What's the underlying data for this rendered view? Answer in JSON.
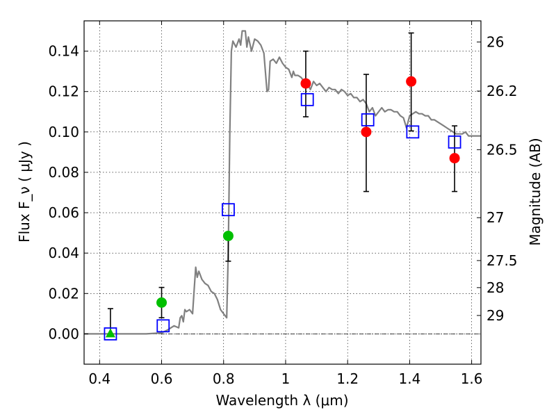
{
  "chart_data": {
    "type": "scatter",
    "xlabel": "Wavelength  λ (μm)",
    "ylabel": "Flux  F_ν  ( μJy )",
    "ylabel_right": "Magnitude (AB)",
    "xlim": [
      0.35,
      1.63
    ],
    "ylim": [
      -0.015,
      0.155
    ],
    "grid": true,
    "x_ticks": [
      {
        "v": 0.4,
        "label": "0.4"
      },
      {
        "v": 0.6,
        "label": "0.6"
      },
      {
        "v": 0.8,
        "label": "0.8"
      },
      {
        "v": 1.0,
        "label": "1"
      },
      {
        "v": 1.2,
        "label": "1.2"
      },
      {
        "v": 1.4,
        "label": "1.4"
      },
      {
        "v": 1.6,
        "label": "1.6"
      }
    ],
    "y_ticks": [
      {
        "v": 0.0,
        "label": "0.00"
      },
      {
        "v": 0.02,
        "label": "0.02"
      },
      {
        "v": 0.04,
        "label": "0.04"
      },
      {
        "v": 0.06,
        "label": "0.06"
      },
      {
        "v": 0.08,
        "label": "0.08"
      },
      {
        "v": 0.1,
        "label": "0.10"
      },
      {
        "v": 0.12,
        "label": "0.12"
      },
      {
        "v": 0.14,
        "label": "0.14"
      }
    ],
    "right_ticks": [
      {
        "mag": 26.0,
        "label": "26"
      },
      {
        "mag": 26.2,
        "label": "26.2"
      },
      {
        "mag": 26.5,
        "label": "26.5"
      },
      {
        "mag": 27.0,
        "label": "27"
      },
      {
        "mag": 27.5,
        "label": "27.5"
      },
      {
        "mag": 28.0,
        "label": "28"
      },
      {
        "mag": 29.0,
        "label": "29"
      }
    ],
    "series": [
      {
        "type": "line",
        "color": "#808080",
        "points": [
          [
            0.35,
            0.0
          ],
          [
            0.55,
            0.0
          ],
          [
            0.6,
            0.0005
          ],
          [
            0.62,
            0.002
          ],
          [
            0.64,
            0.004
          ],
          [
            0.655,
            0.003
          ],
          [
            0.66,
            0.008
          ],
          [
            0.665,
            0.009
          ],
          [
            0.67,
            0.006
          ],
          [
            0.675,
            0.012
          ],
          [
            0.68,
            0.011
          ],
          [
            0.69,
            0.012
          ],
          [
            0.7,
            0.01
          ],
          [
            0.705,
            0.022
          ],
          [
            0.71,
            0.033
          ],
          [
            0.715,
            0.028
          ],
          [
            0.72,
            0.031
          ],
          [
            0.73,
            0.027
          ],
          [
            0.74,
            0.025
          ],
          [
            0.75,
            0.024
          ],
          [
            0.76,
            0.021
          ],
          [
            0.77,
            0.02
          ],
          [
            0.78,
            0.017
          ],
          [
            0.79,
            0.012
          ],
          [
            0.8,
            0.01
          ],
          [
            0.81,
            0.008
          ],
          [
            0.815,
            0.04
          ],
          [
            0.82,
            0.1
          ],
          [
            0.825,
            0.14
          ],
          [
            0.83,
            0.145
          ],
          [
            0.84,
            0.142
          ],
          [
            0.85,
            0.146
          ],
          [
            0.855,
            0.143
          ],
          [
            0.86,
            0.15
          ],
          [
            0.87,
            0.15
          ],
          [
            0.875,
            0.142
          ],
          [
            0.88,
            0.147
          ],
          [
            0.89,
            0.14
          ],
          [
            0.9,
            0.146
          ],
          [
            0.91,
            0.145
          ],
          [
            0.92,
            0.143
          ],
          [
            0.93,
            0.139
          ],
          [
            0.94,
            0.12
          ],
          [
            0.945,
            0.121
          ],
          [
            0.95,
            0.135
          ],
          [
            0.96,
            0.136
          ],
          [
            0.97,
            0.134
          ],
          [
            0.98,
            0.137
          ],
          [
            0.99,
            0.134
          ],
          [
            1.0,
            0.132
          ],
          [
            1.01,
            0.131
          ],
          [
            1.02,
            0.127
          ],
          [
            1.025,
            0.13
          ],
          [
            1.03,
            0.128
          ],
          [
            1.04,
            0.128
          ],
          [
            1.05,
            0.127
          ],
          [
            1.06,
            0.125
          ],
          [
            1.07,
            0.124
          ],
          [
            1.08,
            0.121
          ],
          [
            1.09,
            0.125
          ],
          [
            1.1,
            0.123
          ],
          [
            1.11,
            0.124
          ],
          [
            1.12,
            0.122
          ],
          [
            1.13,
            0.12
          ],
          [
            1.14,
            0.122
          ],
          [
            1.15,
            0.121
          ],
          [
            1.16,
            0.121
          ],
          [
            1.17,
            0.119
          ],
          [
            1.18,
            0.121
          ],
          [
            1.19,
            0.12
          ],
          [
            1.2,
            0.118
          ],
          [
            1.21,
            0.119
          ],
          [
            1.22,
            0.117
          ],
          [
            1.23,
            0.117
          ],
          [
            1.24,
            0.115
          ],
          [
            1.25,
            0.116
          ],
          [
            1.26,
            0.114
          ],
          [
            1.27,
            0.11
          ],
          [
            1.28,
            0.112
          ],
          [
            1.29,
            0.108
          ],
          [
            1.3,
            0.11
          ],
          [
            1.31,
            0.112
          ],
          [
            1.32,
            0.11
          ],
          [
            1.33,
            0.111
          ],
          [
            1.34,
            0.111
          ],
          [
            1.35,
            0.11
          ],
          [
            1.36,
            0.11
          ],
          [
            1.37,
            0.108
          ],
          [
            1.38,
            0.107
          ],
          [
            1.39,
            0.102
          ],
          [
            1.4,
            0.108
          ],
          [
            1.41,
            0.109
          ],
          [
            1.42,
            0.11
          ],
          [
            1.43,
            0.109
          ],
          [
            1.44,
            0.109
          ],
          [
            1.45,
            0.108
          ],
          [
            1.46,
            0.108
          ],
          [
            1.47,
            0.106
          ],
          [
            1.48,
            0.106
          ],
          [
            1.49,
            0.105
          ],
          [
            1.5,
            0.104
          ],
          [
            1.51,
            0.103
          ],
          [
            1.52,
            0.102
          ],
          [
            1.53,
            0.101
          ],
          [
            1.54,
            0.1
          ],
          [
            1.55,
            0.099
          ],
          [
            1.56,
            0.099
          ],
          [
            1.57,
            0.099
          ],
          [
            1.58,
            0.1
          ],
          [
            1.59,
            0.098
          ],
          [
            1.6,
            0.098
          ],
          [
            1.61,
            0.098
          ],
          [
            1.63,
            0.098
          ]
        ]
      },
      {
        "type": "points",
        "marker": "circle",
        "color": "#ff0000",
        "points": [
          {
            "x": 1.065,
            "y": 0.124,
            "err_lo": 0.1075,
            "err_hi": 0.14
          },
          {
            "x": 1.26,
            "y": 0.1,
            "err_lo": 0.0705,
            "err_hi": 0.1285
          },
          {
            "x": 1.405,
            "y": 0.125,
            "err_lo": 0.1005,
            "err_hi": 0.149
          },
          {
            "x": 1.545,
            "y": 0.087,
            "err_lo": 0.0705,
            "err_hi": 0.103
          }
        ]
      },
      {
        "type": "points",
        "marker": "circle",
        "color": "#00bf00",
        "points": [
          {
            "x": 0.6,
            "y": 0.0155,
            "err_lo": 0.008,
            "err_hi": 0.023
          },
          {
            "x": 0.815,
            "y": 0.0485,
            "err_lo": 0.036,
            "err_hi": 0.0485
          }
        ]
      },
      {
        "type": "points",
        "marker": "triangle",
        "color": "#00bf00",
        "points": [
          {
            "x": 0.435,
            "y": 0.0,
            "err_lo": 0.0,
            "err_hi": 0.0125
          }
        ]
      },
      {
        "type": "points",
        "marker": "open-square",
        "color": "#0000ff",
        "points": [
          {
            "x": 0.435,
            "y": 0.0
          },
          {
            "x": 0.605,
            "y": 0.004
          },
          {
            "x": 0.815,
            "y": 0.0615
          },
          {
            "x": 1.07,
            "y": 0.116
          },
          {
            "x": 1.265,
            "y": 0.106
          },
          {
            "x": 1.41,
            "y": 0.1
          },
          {
            "x": 1.545,
            "y": 0.095
          }
        ]
      }
    ]
  }
}
